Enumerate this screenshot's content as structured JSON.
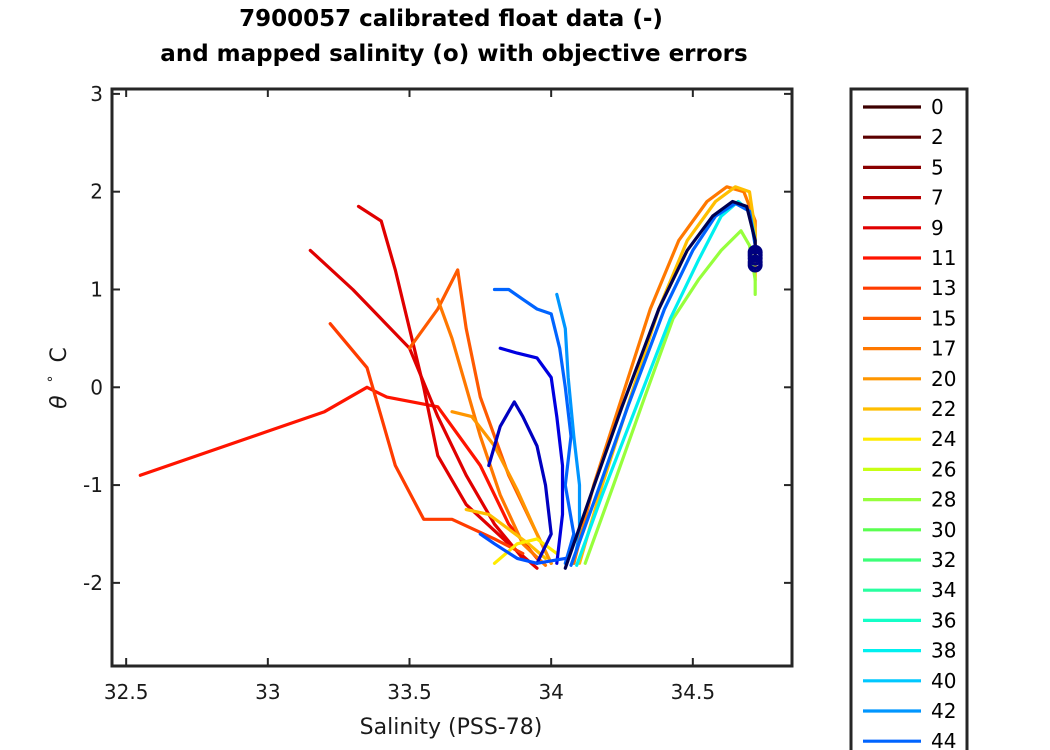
{
  "chart_data": {
    "type": "line",
    "title": [
      "7900057 calibrated float data (-)",
      "and mapped salinity (o) with objective errors"
    ],
    "xlabel": "Salinity (PSS-78)",
    "ylabel_symbol": "θ",
    "ylabel_degree": "°",
    "ylabel_unit": "C",
    "xlim": [
      32.45,
      34.85
    ],
    "ylim": [
      -2.85,
      3.05
    ],
    "xticks": [
      32.5,
      33,
      33.5,
      34,
      34.5
    ],
    "xtick_labels": [
      "32.5",
      "33",
      "33.5",
      "34",
      "34.5"
    ],
    "yticks": [
      -2,
      -1,
      0,
      1,
      2,
      3
    ],
    "ytick_labels": [
      "-2",
      "-1",
      "0",
      "1",
      "2",
      "3"
    ],
    "legend_position": "outside-right",
    "legend": [
      {
        "label": "0",
        "color": "#3d0000"
      },
      {
        "label": "2",
        "color": "#5c0000"
      },
      {
        "label": "5",
        "color": "#8a0000"
      },
      {
        "label": "7",
        "color": "#b80000"
      },
      {
        "label": "9",
        "color": "#e00000"
      },
      {
        "label": "11",
        "color": "#ff1400"
      },
      {
        "label": "13",
        "color": "#ff3c00"
      },
      {
        "label": "15",
        "color": "#ff5a00"
      },
      {
        "label": "17",
        "color": "#ff7800"
      },
      {
        "label": "20",
        "color": "#ff9600"
      },
      {
        "label": "22",
        "color": "#ffbe00"
      },
      {
        "label": "24",
        "color": "#ffeb00"
      },
      {
        "label": "26",
        "color": "#c8ff14"
      },
      {
        "label": "28",
        "color": "#96ff3c"
      },
      {
        "label": "30",
        "color": "#5aff50"
      },
      {
        "label": "32",
        "color": "#3cff78"
      },
      {
        "label": "34",
        "color": "#28ffa0"
      },
      {
        "label": "36",
        "color": "#14ffc8"
      },
      {
        "label": "38",
        "color": "#00f0f0"
      },
      {
        "label": "40",
        "color": "#00c8ff"
      },
      {
        "label": "42",
        "color": "#0096ff"
      },
      {
        "label": "44",
        "color": "#0064ff"
      }
    ],
    "series": [
      {
        "color": "#ff1400",
        "points": [
          [
            32.55,
            -0.9
          ],
          [
            33.0,
            -0.45
          ],
          [
            33.2,
            -0.25
          ],
          [
            33.35,
            0.0
          ],
          [
            33.42,
            -0.1
          ],
          [
            33.6,
            -0.2
          ],
          [
            33.75,
            -0.8
          ],
          [
            33.85,
            -1.4
          ],
          [
            33.95,
            -1.75
          ]
        ]
      },
      {
        "color": "#e00000",
        "points": [
          [
            33.15,
            1.4
          ],
          [
            33.3,
            1.0
          ],
          [
            33.5,
            0.4
          ],
          [
            33.6,
            -0.3
          ],
          [
            33.7,
            -0.9
          ],
          [
            33.8,
            -1.4
          ],
          [
            33.9,
            -1.75
          ]
        ]
      },
      {
        "color": "#e00000",
        "points": [
          [
            33.32,
            1.85
          ],
          [
            33.4,
            1.7
          ],
          [
            33.45,
            1.2
          ],
          [
            33.5,
            0.6
          ],
          [
            33.55,
            0.0
          ],
          [
            33.6,
            -0.7
          ],
          [
            33.7,
            -1.2
          ],
          [
            33.85,
            -1.6
          ],
          [
            33.95,
            -1.85
          ]
        ]
      },
      {
        "color": "#ff3c00",
        "points": [
          [
            33.22,
            0.65
          ],
          [
            33.35,
            0.2
          ],
          [
            33.4,
            -0.3
          ],
          [
            33.45,
            -0.8
          ],
          [
            33.55,
            -1.35
          ],
          [
            33.65,
            -1.35
          ],
          [
            33.8,
            -1.55
          ],
          [
            33.9,
            -1.7
          ]
        ]
      },
      {
        "color": "#ff5a00",
        "points": [
          [
            33.5,
            0.4
          ],
          [
            33.6,
            0.8
          ],
          [
            33.67,
            1.2
          ],
          [
            33.7,
            0.6
          ],
          [
            33.75,
            -0.1
          ],
          [
            33.85,
            -0.9
          ],
          [
            33.95,
            -1.5
          ],
          [
            34.0,
            -1.8
          ]
        ]
      },
      {
        "color": "#ff7800",
        "points": [
          [
            33.6,
            0.9
          ],
          [
            33.65,
            0.5
          ],
          [
            33.7,
            0.0
          ],
          [
            33.75,
            -0.5
          ],
          [
            33.82,
            -1.1
          ],
          [
            33.9,
            -1.6
          ],
          [
            33.98,
            -1.82
          ]
        ]
      },
      {
        "color": "#ff9600",
        "points": [
          [
            33.65,
            -0.25
          ],
          [
            33.72,
            -0.3
          ],
          [
            33.8,
            -0.6
          ],
          [
            33.88,
            -1.05
          ],
          [
            33.95,
            -1.5
          ],
          [
            34.0,
            -1.8
          ]
        ]
      },
      {
        "color": "#ffbe00",
        "points": [
          [
            33.7,
            -1.25
          ],
          [
            33.78,
            -1.3
          ],
          [
            33.85,
            -1.45
          ],
          [
            33.92,
            -1.6
          ],
          [
            33.98,
            -1.75
          ]
        ]
      },
      {
        "color": "#ffeb00",
        "points": [
          [
            33.8,
            -1.8
          ],
          [
            33.88,
            -1.6
          ],
          [
            33.95,
            -1.55
          ],
          [
            34.02,
            -1.7
          ]
        ]
      },
      {
        "color": "#0064ff",
        "points": [
          [
            33.8,
            1.0
          ],
          [
            33.85,
            1.0
          ],
          [
            33.9,
            0.9
          ],
          [
            33.95,
            0.8
          ],
          [
            34.0,
            0.75
          ],
          [
            34.03,
            0.4
          ],
          [
            34.05,
            0.0
          ],
          [
            34.07,
            -0.5
          ],
          [
            34.05,
            -1.0
          ],
          [
            34.08,
            -1.5
          ],
          [
            34.05,
            -1.8
          ]
        ]
      },
      {
        "color": "#0096ff",
        "points": [
          [
            34.02,
            0.95
          ],
          [
            34.05,
            0.6
          ],
          [
            34.06,
            0.1
          ],
          [
            34.08,
            -0.5
          ],
          [
            34.1,
            -1.0
          ],
          [
            34.1,
            -1.5
          ],
          [
            34.08,
            -1.8
          ]
        ]
      },
      {
        "color": "#0000e0",
        "points": [
          [
            33.82,
            0.4
          ],
          [
            33.88,
            0.35
          ],
          [
            33.95,
            0.3
          ],
          [
            34.0,
            0.1
          ],
          [
            34.02,
            -0.3
          ],
          [
            34.04,
            -0.8
          ],
          [
            34.04,
            -1.3
          ],
          [
            34.02,
            -1.8
          ]
        ]
      },
      {
        "color": "#0000c0",
        "points": [
          [
            33.78,
            -0.8
          ],
          [
            33.82,
            -0.4
          ],
          [
            33.87,
            -0.15
          ],
          [
            33.9,
            -0.3
          ],
          [
            33.95,
            -0.6
          ],
          [
            33.98,
            -1.0
          ],
          [
            34.0,
            -1.5
          ],
          [
            33.95,
            -1.8
          ]
        ]
      },
      {
        "color": "#0050ff",
        "points": [
          [
            33.75,
            -1.5
          ],
          [
            33.8,
            -1.6
          ],
          [
            33.88,
            -1.75
          ],
          [
            33.95,
            -1.8
          ],
          [
            34.05,
            -1.75
          ]
        ]
      },
      {
        "color": "#ff7800",
        "points": [
          [
            34.08,
            -1.8
          ],
          [
            34.15,
            -1.0
          ],
          [
            34.25,
            -0.1
          ],
          [
            34.35,
            0.8
          ],
          [
            34.45,
            1.5
          ],
          [
            34.55,
            1.9
          ],
          [
            34.62,
            2.05
          ],
          [
            34.68,
            2.0
          ],
          [
            34.72,
            1.7
          ],
          [
            34.72,
            1.2
          ]
        ]
      },
      {
        "color": "#ffbe00",
        "points": [
          [
            34.1,
            -1.8
          ],
          [
            34.18,
            -1.0
          ],
          [
            34.28,
            -0.1
          ],
          [
            34.38,
            0.8
          ],
          [
            34.48,
            1.5
          ],
          [
            34.58,
            1.9
          ],
          [
            34.65,
            2.05
          ],
          [
            34.7,
            2.0
          ],
          [
            34.72,
            1.6
          ],
          [
            34.72,
            1.1
          ]
        ]
      },
      {
        "color": "#96ff3c",
        "points": [
          [
            34.12,
            -1.8
          ],
          [
            34.22,
            -1.0
          ],
          [
            34.33,
            -0.1
          ],
          [
            34.43,
            0.7
          ],
          [
            34.52,
            1.1
          ],
          [
            34.6,
            1.4
          ],
          [
            34.67,
            1.6
          ],
          [
            34.7,
            1.45
          ],
          [
            34.72,
            1.1
          ],
          [
            34.72,
            0.95
          ]
        ]
      },
      {
        "color": "#00f0f0",
        "points": [
          [
            34.09,
            -1.82
          ],
          [
            34.18,
            -1.1
          ],
          [
            34.3,
            -0.2
          ],
          [
            34.42,
            0.7
          ],
          [
            34.52,
            1.3
          ],
          [
            34.6,
            1.75
          ],
          [
            34.66,
            1.9
          ],
          [
            34.7,
            1.8
          ],
          [
            34.72,
            1.5
          ]
        ]
      },
      {
        "color": "#0064ff",
        "points": [
          [
            34.07,
            -1.82
          ],
          [
            34.16,
            -1.1
          ],
          [
            34.27,
            -0.2
          ],
          [
            34.4,
            0.8
          ],
          [
            34.5,
            1.4
          ],
          [
            34.58,
            1.75
          ],
          [
            34.65,
            1.88
          ],
          [
            34.7,
            1.8
          ],
          [
            34.72,
            1.45
          ]
        ]
      },
      {
        "color": "#000050",
        "points": [
          [
            34.05,
            -1.85
          ],
          [
            34.14,
            -1.1
          ],
          [
            34.25,
            -0.2
          ],
          [
            34.38,
            0.8
          ],
          [
            34.48,
            1.4
          ],
          [
            34.57,
            1.75
          ],
          [
            34.64,
            1.9
          ],
          [
            34.69,
            1.85
          ],
          [
            34.72,
            1.5
          ],
          [
            34.72,
            1.3
          ]
        ]
      }
    ],
    "mapped_points": [
      [
        34.72,
        1.38
      ],
      [
        34.72,
        1.32
      ],
      [
        34.72,
        1.28
      ],
      [
        34.72,
        1.25
      ],
      [
        34.72,
        1.35
      ]
    ]
  }
}
